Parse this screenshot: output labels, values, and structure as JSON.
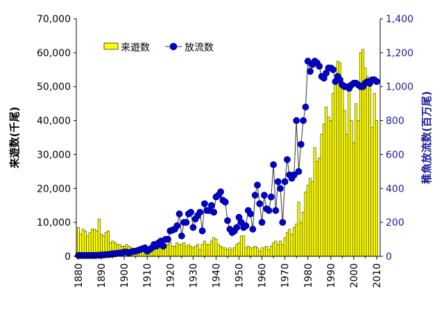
{
  "chart_data": {
    "type": "bar+line",
    "x_start": 1880,
    "x_end": 2010,
    "x_ticks": [
      "1880",
      "1890",
      "1900",
      "1910",
      "1920",
      "1930",
      "1940",
      "1950",
      "1960",
      "1970",
      "1980",
      "1990",
      "2000",
      "2010"
    ],
    "ylabel_left": "来遊数(千尾)",
    "ylabel_right": "稚魚放流数(百万尾)",
    "ylim_left": [
      0,
      70000
    ],
    "ylim_right": [
      0,
      1400
    ],
    "yticks_left": [
      "0",
      "10,000",
      "20,000",
      "30,000",
      "40,000",
      "50,000",
      "60,000",
      "70,000"
    ],
    "yticks_right": [
      "0",
      "200",
      "400",
      "600",
      "800",
      "1,000",
      "1,200",
      "1,400"
    ],
    "legend_position": "top-left",
    "grid": false,
    "colors": {
      "bar": "#ffff00",
      "bar_edge": "#333300",
      "line": "#333333",
      "marker": "#0000cc",
      "right_axis": "#1a1aa0"
    },
    "series": [
      {
        "name": "来遊数",
        "axis": "left",
        "type": "bar",
        "values": [
          8500,
          6500,
          8000,
          7500,
          6000,
          7000,
          8000,
          8000,
          7500,
          11000,
          6500,
          6000,
          7000,
          7500,
          4000,
          4500,
          4000,
          3500,
          3500,
          3000,
          3000,
          3500,
          3000,
          2500,
          2000,
          2000,
          2500,
          2000,
          1500,
          2000,
          2000,
          2500,
          2500,
          3000,
          2500,
          3500,
          3000,
          3000,
          3500,
          3500,
          4000,
          3000,
          3000,
          4000,
          3500,
          3500,
          4000,
          3000,
          3500,
          3000,
          2500,
          3000,
          3500,
          2000,
          3500,
          4500,
          3500,
          3500,
          4500,
          5500,
          5000,
          3500,
          3000,
          2500,
          2500,
          2000,
          2500,
          2000,
          2500,
          3500,
          4000,
          6000,
          6000,
          2500,
          3000,
          2500,
          2500,
          3000,
          2500,
          1500,
          2500,
          2500,
          3000,
          2000,
          3000,
          4000,
          4500,
          3500,
          4500,
          3500,
          5500,
          7000,
          8000,
          6500,
          8500,
          9500,
          16000,
          10000,
          13000,
          19000,
          21000,
          23000,
          22000,
          32000,
          28000,
          29000,
          36000,
          39000,
          44000,
          41000,
          40000,
          48000,
          52000,
          57500,
          57000,
          51000,
          43000,
          36000,
          50000,
          40000,
          33500,
          45000,
          40000,
          60000,
          61000,
          55500,
          53000,
          50000,
          38000,
          48000,
          40000
        ]
      },
      {
        "name": "放流数",
        "axis": "right",
        "type": "line",
        "values": [
          5,
          5,
          5,
          5,
          5,
          5,
          5,
          5,
          6,
          6,
          8,
          8,
          10,
          10,
          12,
          15,
          15,
          18,
          20,
          20,
          25,
          25,
          20,
          25,
          30,
          30,
          35,
          40,
          45,
          50,
          30,
          40,
          50,
          70,
          60,
          80,
          90,
          60,
          100,
          100,
          150,
          155,
          160,
          180,
          250,
          120,
          200,
          200,
          250,
          260,
          170,
          220,
          240,
          260,
          150,
          310,
          270,
          270,
          300,
          260,
          350,
          360,
          380,
          330,
          320,
          210,
          160,
          140,
          150,
          170,
          230,
          200,
          170,
          180,
          270,
          250,
          160,
          360,
          420,
          310,
          200,
          360,
          280,
          270,
          350,
          540,
          270,
          440,
          400,
          200,
          440,
          570,
          480,
          460,
          480,
          800,
          500,
          660,
          800,
          880,
          1150,
          1090,
          1130,
          1150,
          1140,
          1120,
          1060,
          1050,
          1080,
          1110,
          1110,
          1100,
          1030,
          1060,
          1040,
          1010,
          1000,
          1000,
          990,
          1010,
          1020,
          1020,
          1010,
          1000,
          1000,
          1020,
          1030,
          1020,
          1040,
          1040,
          1030
        ]
      }
    ]
  }
}
